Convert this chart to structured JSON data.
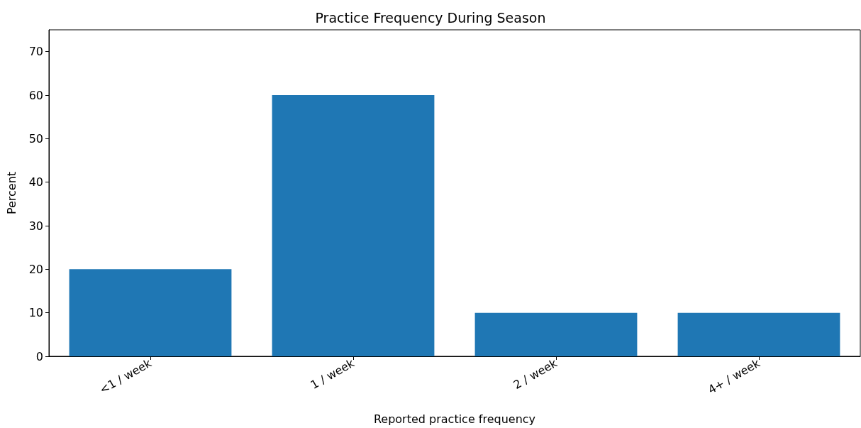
{
  "chart_data": {
    "type": "bar",
    "title": "Practice Frequency During Season",
    "xlabel": "Reported practice frequency",
    "ylabel": "Percent",
    "categories": [
      "<1 / week",
      "1 / week",
      "2 / week",
      "4+ / week"
    ],
    "values": [
      20,
      60,
      10,
      10
    ],
    "color": "#1f77b4",
    "ylim": [
      0,
      75
    ],
    "yticks": [
      0,
      10,
      20,
      30,
      40,
      50,
      60,
      70
    ]
  }
}
